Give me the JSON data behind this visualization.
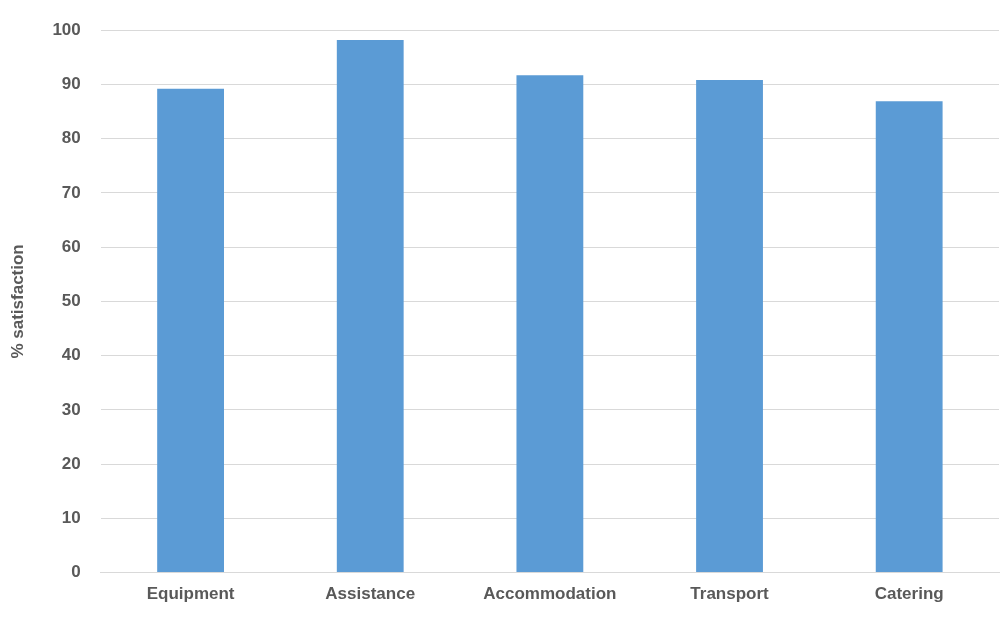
{
  "chart_data": {
    "type": "bar",
    "ylabel": "% satisfaction",
    "categories": [
      "Equipment",
      "Assistance",
      "Accommodation",
      "Transport",
      "Catering"
    ],
    "values": [
      89.2,
      98.2,
      91.7,
      90.8,
      86.9
    ],
    "color": "#5b9bd5",
    "ylim": [
      0,
      100
    ],
    "yticks": [
      0,
      10,
      20,
      30,
      40,
      50,
      60,
      70,
      80,
      90,
      100
    ],
    "grid": "y"
  }
}
